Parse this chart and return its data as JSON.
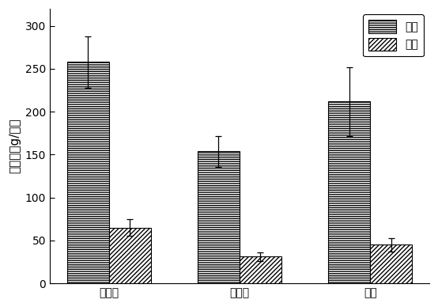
{
  "categories": [
    "未淤洗",
    "未改良",
    "改良"
  ],
  "stem_values": [
    258,
    154,
    212
  ],
  "stem_errors": [
    30,
    18,
    40
  ],
  "leaf_values": [
    65,
    31,
    45
  ],
  "leaf_errors": [
    10,
    5,
    8
  ],
  "ylabel": "生物量（g/株）",
  "legend_stem": "茎重",
  "legend_leaf": "叶重",
  "ylim": [
    0,
    320
  ],
  "yticks": [
    0,
    50,
    100,
    150,
    200,
    250,
    300
  ],
  "bar_width": 0.32,
  "background_color": "#ffffff"
}
